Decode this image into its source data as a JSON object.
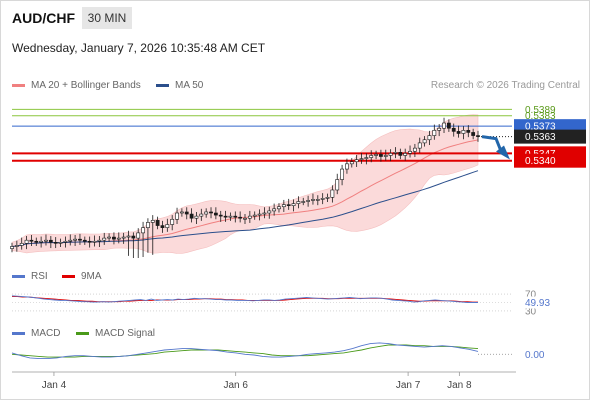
{
  "header": {
    "symbol": "AUD/CHF",
    "interval": "30 MIN",
    "datetime": "Wednesday, January 7, 2026 10:35:48 AM CET",
    "research_credit": "Research © 2026 Trading Central"
  },
  "legend": {
    "ma20_label": "MA 20 + Bollinger Bands",
    "ma20_color": "#f08080",
    "ma50_label": "MA 50",
    "ma50_color": "#2b4f8c"
  },
  "colors": {
    "up_candle": "#1a1a1a",
    "down_candle": "#1a1a1a",
    "bollinger_fill": "#fbd4d4",
    "resistance_green": "#8cc63f",
    "pivot_blue": "#3366cc",
    "support_red": "#e00000",
    "arrow_blue": "#2266aa",
    "rsi_color": "#5577cc",
    "rsi_9ma_color": "#e00000",
    "macd_color": "#5577cc",
    "macd_signal_color": "#4a9a1a"
  },
  "chart_data": [
    {
      "type": "candlestick",
      "name": "price",
      "x_ticks": [
        "Jan 4",
        "Jan 6",
        "Jan 7",
        "Jan 8"
      ],
      "ylim": [
        0.5247,
        0.5398
      ],
      "close_series": [
        0.5258,
        0.5259,
        0.5261,
        0.5264,
        0.5263,
        0.5262,
        0.5263,
        0.5264,
        0.5262,
        0.5261,
        0.5262,
        0.5263,
        0.5264,
        0.5265,
        0.5264,
        0.5263,
        0.5262,
        0.5263,
        0.5264,
        0.5266,
        0.5267,
        0.5265,
        0.5266,
        0.5267,
        0.5268,
        0.5266,
        0.5271,
        0.5276,
        0.5281,
        0.5283,
        0.5278,
        0.5276,
        0.5279,
        0.5284,
        0.529,
        0.5291,
        0.5289,
        0.5285,
        0.5287,
        0.5289,
        0.5291,
        0.529,
        0.5288,
        0.5287,
        0.5286,
        0.5287,
        0.5286,
        0.5285,
        0.5285,
        0.5287,
        0.5288,
        0.5289,
        0.529,
        0.5292,
        0.5294,
        0.5296,
        0.5298,
        0.5297,
        0.5299,
        0.5301,
        0.5301,
        0.5302,
        0.5303,
        0.5303,
        0.5304,
        0.5305,
        0.5312,
        0.5322,
        0.5332,
        0.5337,
        0.5339,
        0.5341,
        0.5342,
        0.5343,
        0.5345,
        0.5346,
        0.5344,
        0.5345,
        0.5347,
        0.5348,
        0.5345,
        0.5347,
        0.5349,
        0.5352,
        0.5357,
        0.536,
        0.5364,
        0.5369,
        0.5371,
        0.5376,
        0.5371,
        0.5368,
        0.5366,
        0.5369,
        0.5367,
        0.5364,
        0.5363
      ],
      "spikes": [
        {
          "index": 24,
          "low": 0.5249
        },
        {
          "index": 25,
          "low": 0.5247
        },
        {
          "index": 26,
          "low": 0.5247
        },
        {
          "index": 27,
          "low": 0.5248
        },
        {
          "index": 28,
          "low": 0.5252
        },
        {
          "index": 29,
          "low": 0.525
        }
      ],
      "levels": [
        {
          "value": 0.5389,
          "label": "0.5389",
          "kind": "resistance"
        },
        {
          "value": 0.5383,
          "label": "0.5383",
          "kind": "resistance"
        },
        {
          "value": 0.5373,
          "label": "0.5373",
          "kind": "pivot"
        },
        {
          "value": 0.5363,
          "label": "0.5363",
          "kind": "current"
        },
        {
          "value": 0.5347,
          "label": "0.5347",
          "kind": "support"
        },
        {
          "value": 0.534,
          "label": "0.5340",
          "kind": "support"
        }
      ]
    },
    {
      "type": "line",
      "name": "rsi",
      "series": [
        {
          "name": "RSI"
        },
        {
          "name": "9MA"
        }
      ],
      "ylim": [
        25,
        75
      ],
      "ticks": [
        "70",
        "50",
        "30"
      ],
      "current_value": "49.93",
      "rsi": [
        66,
        65,
        64,
        63,
        62,
        60,
        58,
        57,
        56,
        55,
        55,
        54,
        53,
        52,
        52,
        51,
        51,
        52,
        51,
        52,
        53,
        54,
        55,
        56,
        57,
        55,
        58,
        55,
        56,
        57,
        56,
        58,
        57,
        58,
        60,
        59,
        59,
        58,
        57,
        57,
        56,
        56,
        55,
        55,
        55,
        54,
        55,
        56,
        56,
        55,
        56,
        58,
        59,
        60,
        61,
        62,
        61,
        60,
        59,
        58,
        59,
        60,
        61,
        62,
        61,
        59,
        60,
        61,
        61,
        60,
        58,
        56,
        55,
        54,
        53,
        51,
        52,
        54,
        55,
        56,
        55,
        54,
        53,
        52,
        51,
        50,
        50,
        49.93
      ],
      "rsi_9ma": [
        64,
        64,
        63,
        63,
        62,
        61,
        60,
        59,
        58,
        57,
        56,
        55,
        55,
        54,
        53,
        53,
        52,
        52,
        52,
        52,
        52,
        53,
        53,
        54,
        55,
        55,
        55,
        56,
        56,
        56,
        56,
        57,
        57,
        57,
        58,
        58,
        59,
        59,
        58,
        58,
        57,
        57,
        56,
        56,
        55,
        55,
        55,
        55,
        55,
        55,
        55,
        56,
        57,
        58,
        59,
        60,
        60,
        60,
        60,
        59,
        59,
        59,
        60,
        60,
        60,
        60,
        60,
        60,
        60,
        60,
        59,
        58,
        57,
        56,
        55,
        54,
        53,
        53,
        54,
        54,
        54,
        54,
        54,
        53,
        52,
        52,
        51,
        51
      ]
    },
    {
      "type": "line",
      "name": "macd",
      "series": [
        {
          "name": "MACD"
        },
        {
          "name": "MACD Signal"
        }
      ],
      "ylim": [
        -0.0015,
        0.002
      ],
      "current_value": "0.00",
      "macd": [
        0.0002,
        -0.0002,
        -0.0005,
        -0.0006,
        -0.0006,
        -0.0005,
        -0.0003,
        -0.0002,
        -0.0002,
        -0.0003,
        -0.0004,
        -0.0004,
        -0.0003,
        -0.0002,
        0.0,
        0.0002,
        0.0004,
        0.0006,
        0.0007,
        0.0008,
        0.0008,
        0.0007,
        0.0006,
        0.0005,
        0.0003,
        0.0002,
        0.0,
        -0.0001,
        -0.0003,
        -0.0004,
        -0.0004,
        -0.0003,
        -0.0002,
        0.0,
        0.0001,
        0.0002,
        0.0003,
        0.0005,
        0.0008,
        0.0012,
        0.0015,
        0.0016,
        0.0015,
        0.0013,
        0.0012,
        0.0011,
        0.001,
        0.0011,
        0.0012,
        0.0011,
        0.0009,
        0.0007,
        0.0004
      ],
      "signal": [
        0.0,
        -0.0001,
        -0.0002,
        -0.0003,
        -0.0004,
        -0.0004,
        -0.0004,
        -0.0004,
        -0.0003,
        -0.0003,
        -0.0003,
        -0.0003,
        -0.0003,
        -0.0002,
        -0.0001,
        0.0,
        0.0001,
        0.0003,
        0.0004,
        0.0005,
        0.0006,
        0.0006,
        0.0006,
        0.0006,
        0.0005,
        0.0004,
        0.0003,
        0.0002,
        0.0001,
        -0.0001,
        -0.0002,
        -0.0002,
        -0.0002,
        -0.0002,
        -0.0001,
        0.0,
        0.0001,
        0.0002,
        0.0004,
        0.0006,
        0.0009,
        0.0011,
        0.0013,
        0.0013,
        0.0013,
        0.0012,
        0.0012,
        0.0011,
        0.0011,
        0.0011,
        0.001,
        0.0009,
        0.0008
      ]
    }
  ]
}
